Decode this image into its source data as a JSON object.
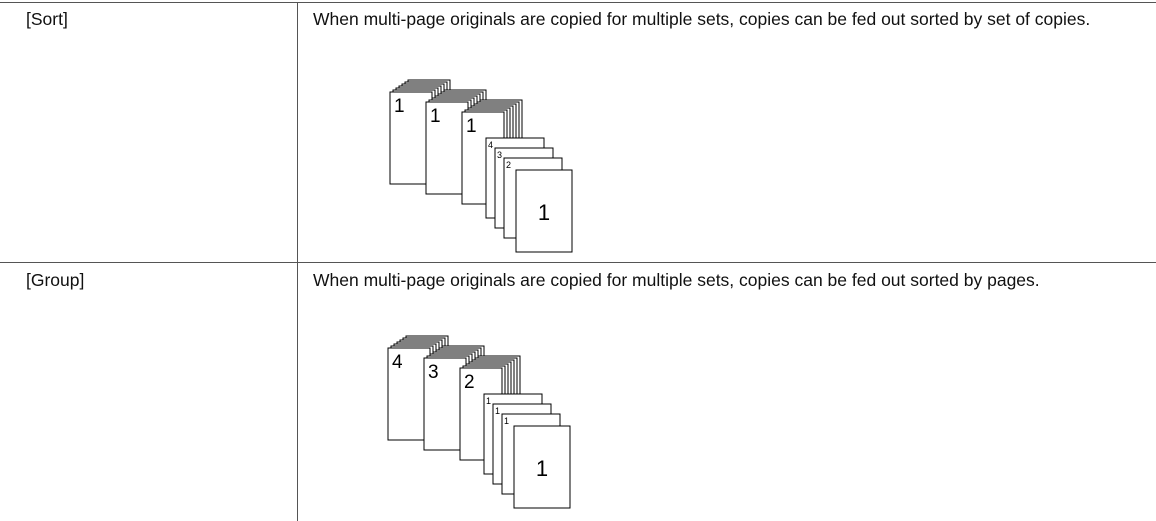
{
  "table": {
    "rows": [
      {
        "label": "[Sort]",
        "description": "When multi-page originals are copied for multiple sets, copies can be fed out sorted by set of copies.",
        "illustration": {
          "stack_labels": [
            "1",
            "1",
            "1"
          ],
          "page_labels": [
            "4",
            "3",
            "2"
          ],
          "front_label": "1"
        }
      },
      {
        "label": "[Group]",
        "description": "When multi-page originals are copied for multiple sets, copies can be fed out sorted by pages.",
        "illustration": {
          "stack_labels": [
            "4",
            "3",
            "2"
          ],
          "page_labels": [
            "1",
            "1",
            "1"
          ],
          "front_label": "1"
        }
      }
    ]
  }
}
